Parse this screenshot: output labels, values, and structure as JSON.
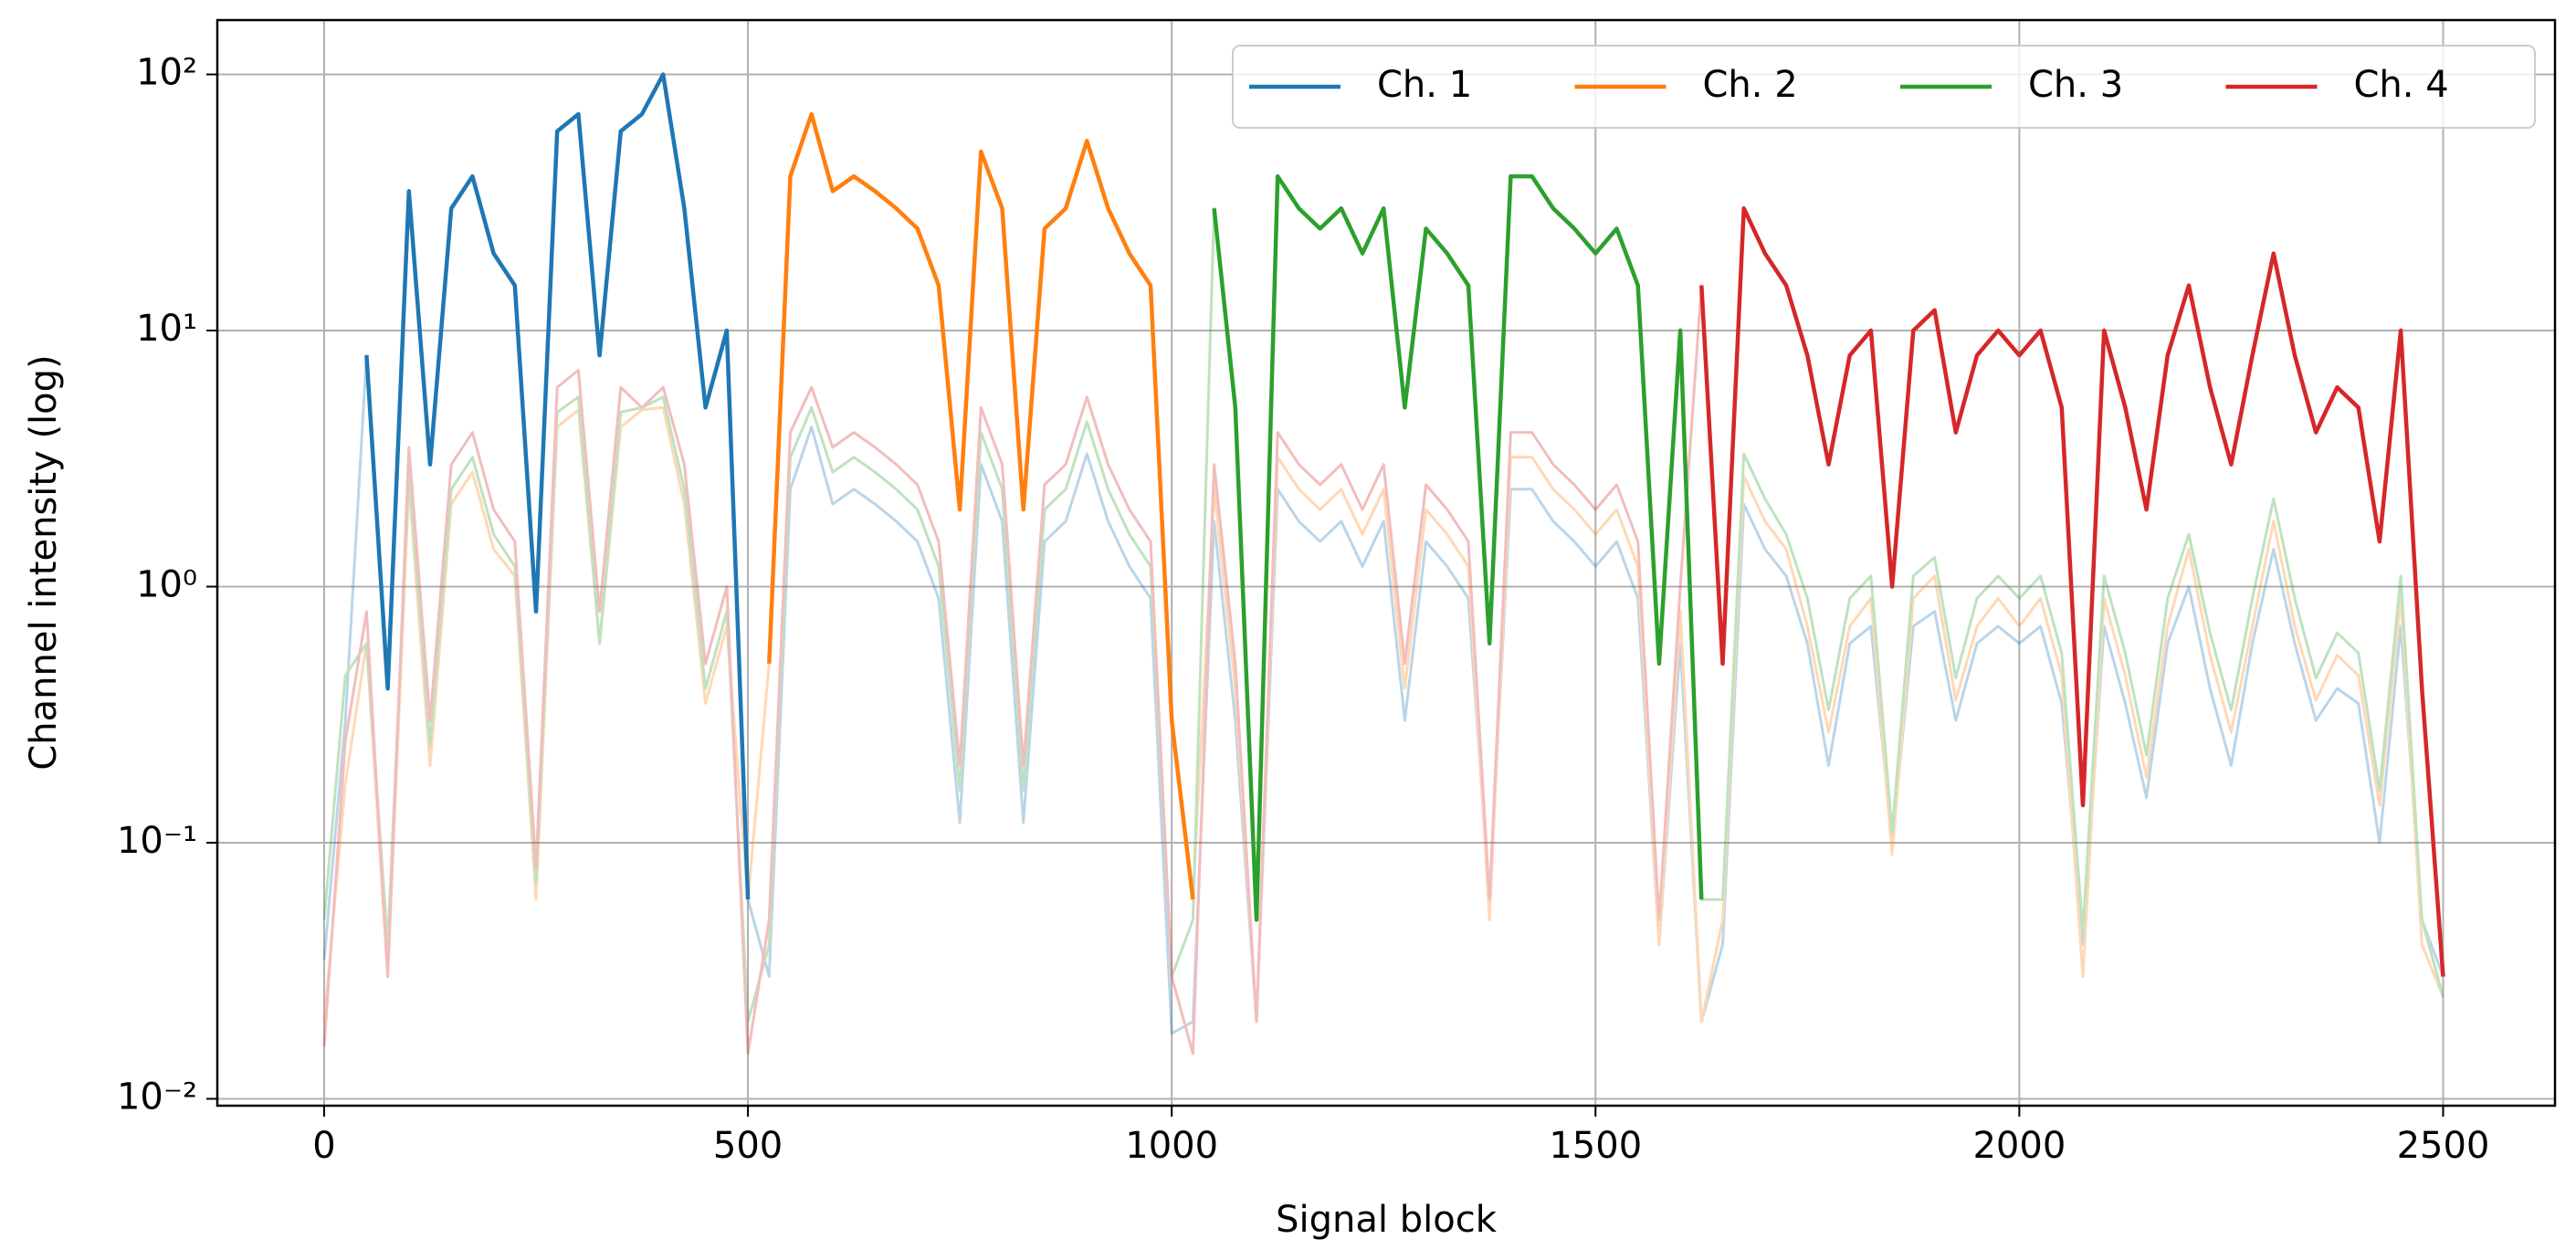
{
  "chart_data": {
    "type": "line",
    "xlabel": "Signal block",
    "ylabel": "Channel intensity (log)",
    "log_y": true,
    "grid": true,
    "legend": "upper right",
    "xlim": [
      -126,
      2632
    ],
    "ylim": [
      0.0094,
      163
    ],
    "xticks": [
      0,
      500,
      1000,
      1500,
      2000,
      2500
    ],
    "yticks": [
      {
        "value": 0.01,
        "label": "10⁻²"
      },
      {
        "value": 0.1,
        "label": "10⁻¹"
      },
      {
        "value": 1,
        "label": "10⁰"
      },
      {
        "value": 10,
        "label": "10¹"
      },
      {
        "value": 100,
        "label": "10²"
      }
    ],
    "x": [
      0,
      25,
      50,
      75,
      100,
      125,
      150,
      175,
      200,
      225,
      250,
      275,
      300,
      325,
      350,
      375,
      400,
      425,
      450,
      475,
      500,
      525,
      550,
      575,
      600,
      625,
      650,
      675,
      700,
      725,
      750,
      775,
      800,
      825,
      850,
      875,
      900,
      925,
      950,
      975,
      1000,
      1025,
      1050,
      1075,
      1100,
      1125,
      1150,
      1175,
      1200,
      1225,
      1250,
      1275,
      1300,
      1325,
      1350,
      1375,
      1400,
      1425,
      1450,
      1475,
      1500,
      1525,
      1550,
      1575,
      1600,
      1625,
      1650,
      1675,
      1700,
      1725,
      1750,
      1775,
      1800,
      1825,
      1850,
      1875,
      1900,
      1925,
      1950,
      1975,
      2000,
      2025,
      2050,
      2075,
      2100,
      2125,
      2150,
      2175,
      2200,
      2225,
      2250,
      2275,
      2300,
      2325,
      2350,
      2375,
      2400,
      2425,
      2450,
      2475,
      2500
    ],
    "series": [
      {
        "name": "Ch. 1",
        "color": "#1f77b4",
        "highlight": [
          50,
          500
        ],
        "values": [
          0.035,
          0.3,
          8,
          0.4,
          35,
          3,
          30,
          40,
          20,
          15,
          0.8,
          60,
          70,
          8,
          60,
          70,
          100,
          30,
          5,
          10,
          0.06,
          0.03,
          2.4,
          4.2,
          2.1,
          2.4,
          2.1,
          1.8,
          1.5,
          0.9,
          0.12,
          3,
          1.8,
          0.12,
          1.5,
          1.8,
          3.3,
          1.8,
          1.2,
          0.9,
          0.018,
          0.02,
          1.8,
          0.3,
          0.02,
          2.4,
          1.8,
          1.5,
          1.8,
          1.2,
          1.8,
          0.3,
          1.5,
          1.2,
          0.9,
          0.06,
          2.4,
          2.4,
          1.8,
          1.5,
          1.2,
          1.5,
          0.9,
          0.04,
          0.6,
          0.02,
          0.04,
          2.1,
          1.4,
          1.1,
          0.6,
          0.2,
          0.6,
          0.7,
          0.1,
          0.7,
          0.8,
          0.3,
          0.6,
          0.7,
          0.6,
          0.7,
          0.35,
          0.04,
          0.7,
          0.35,
          0.15,
          0.6,
          1,
          0.4,
          0.2,
          0.6,
          1.4,
          0.6,
          0.3,
          0.4,
          0.35,
          0.1,
          0.7,
          0.05,
          0.03
        ]
      },
      {
        "name": "Ch. 2",
        "color": "#ff7f0e",
        "highlight": [
          525,
          1025
        ],
        "values": [
          0.02,
          0.17,
          0.6,
          0.03,
          2.5,
          0.2,
          2.1,
          2.8,
          1.4,
          1.1,
          0.06,
          4.2,
          4.9,
          0.6,
          4.2,
          4.9,
          5,
          2.1,
          0.35,
          0.7,
          0.06,
          0.5,
          40,
          70,
          35,
          40,
          35,
          30,
          25,
          15,
          2,
          50,
          30,
          2,
          25,
          30,
          55,
          30,
          20,
          15,
          0.3,
          0.06,
          2.4,
          0.4,
          0.02,
          3.2,
          2.4,
          2,
          2.4,
          1.6,
          2.4,
          0.4,
          2,
          1.6,
          1.2,
          0.05,
          3.2,
          3.2,
          2.4,
          2,
          1.6,
          2,
          1.2,
          0.04,
          0.8,
          0.02,
          0.05,
          2.7,
          1.8,
          1.4,
          0.7,
          0.27,
          0.7,
          0.9,
          0.09,
          0.9,
          1.1,
          0.36,
          0.7,
          0.9,
          0.7,
          0.9,
          0.45,
          0.03,
          0.9,
          0.45,
          0.18,
          0.7,
          1.4,
          0.54,
          0.27,
          0.7,
          1.8,
          0.7,
          0.36,
          0.54,
          0.45,
          0.14,
          0.9,
          0.04,
          0.025
        ]
      },
      {
        "name": "Ch. 3",
        "color": "#2ca02c",
        "highlight": [
          1050,
          1625
        ],
        "values": [
          0.05,
          0.45,
          0.6,
          0.04,
          2.8,
          0.24,
          2.4,
          3.2,
          1.6,
          1.2,
          0.07,
          4.8,
          5.5,
          0.6,
          4.8,
          5,
          5.5,
          2.4,
          0.4,
          0.8,
          0.02,
          0.04,
          3.2,
          5,
          2.8,
          3.2,
          2.8,
          2.4,
          2,
          1.2,
          0.16,
          4,
          2.4,
          0.16,
          2,
          2.4,
          4.4,
          2.4,
          1.6,
          1.2,
          0.03,
          0.05,
          30,
          5,
          0.05,
          40,
          30,
          25,
          30,
          20,
          30,
          5,
          25,
          20,
          15,
          0.6,
          40,
          40,
          30,
          25,
          20,
          25,
          15,
          0.5,
          10,
          0.06,
          0.06,
          3.3,
          2.2,
          1.6,
          0.9,
          0.33,
          0.9,
          1.1,
          0.11,
          1.1,
          1.3,
          0.44,
          0.9,
          1.1,
          0.9,
          1.1,
          0.55,
          0.045,
          1.1,
          0.55,
          0.22,
          0.9,
          1.6,
          0.66,
          0.33,
          0.9,
          2.2,
          0.9,
          0.44,
          0.66,
          0.55,
          0.16,
          1.1,
          0.05,
          0.025
        ]
      },
      {
        "name": "Ch. 4",
        "color": "#d62728",
        "highlight": [
          1625,
          2500
        ],
        "values": [
          0.016,
          0.25,
          0.8,
          0.03,
          3.5,
          0.3,
          3,
          4,
          2,
          1.5,
          0.08,
          6,
          7,
          0.8,
          6,
          5,
          6,
          3,
          0.5,
          1,
          0.015,
          0.05,
          4,
          6,
          3.5,
          4,
          3.5,
          3,
          2.5,
          1.5,
          0.2,
          5,
          3,
          0.2,
          2.5,
          3,
          5.5,
          3,
          2,
          1.5,
          0.03,
          0.015,
          3,
          0.5,
          0.02,
          4,
          3,
          2.5,
          3,
          2,
          3,
          0.5,
          2.5,
          2,
          1.5,
          0.06,
          4,
          4,
          3,
          2.5,
          2,
          2.5,
          1.5,
          0.05,
          1,
          15,
          0.5,
          30,
          20,
          15,
          8,
          3,
          8,
          10,
          1,
          10,
          12,
          4,
          8,
          10,
          8,
          10,
          5,
          0.14,
          10,
          5,
          2,
          8,
          15,
          6,
          3,
          8,
          20,
          8,
          4,
          6,
          5,
          1.5,
          10,
          0.4,
          0.03
        ]
      }
    ]
  }
}
